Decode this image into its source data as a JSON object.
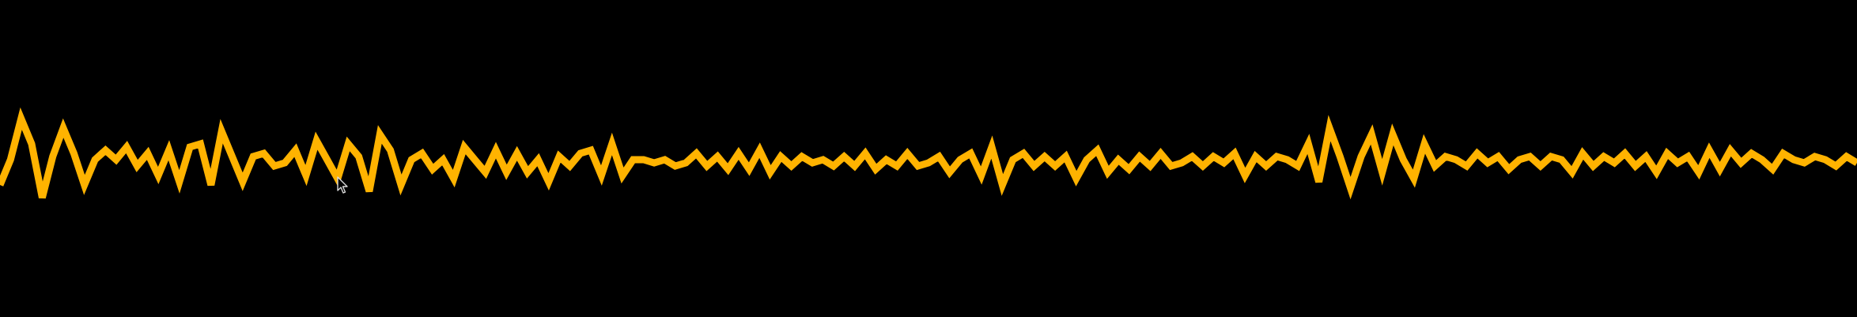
{
  "visualizer": {
    "wave_color": "#FFB300",
    "background_color": "#000000",
    "samples": [
      -0.35,
      0.05,
      0.7,
      0.3,
      -0.55,
      0.1,
      0.55,
      0.15,
      -0.35,
      0.05,
      0.2,
      0.05,
      0.25,
      -0.05,
      0.15,
      -0.2,
      0.2,
      -0.3,
      0.25,
      0.3,
      -0.35,
      0.5,
      0.1,
      -0.3,
      0.1,
      0.15,
      -0.05,
      0.0,
      0.2,
      -0.2,
      0.35,
      0.05,
      -0.25,
      0.3,
      0.1,
      -0.45,
      0.45,
      0.2,
      -0.35,
      0.05,
      0.15,
      -0.1,
      0.05,
      -0.25,
      0.25,
      0.05,
      -0.15,
      0.2,
      -0.15,
      0.15,
      -0.15,
      0.05,
      -0.3,
      0.1,
      -0.05,
      0.15,
      0.2,
      -0.2,
      0.3,
      -0.2,
      0.05,
      0.05,
      0.0,
      0.05,
      -0.05,
      0.0,
      0.15,
      -0.05,
      0.1,
      -0.1,
      0.15,
      -0.1,
      0.2,
      -0.15,
      0.1,
      -0.05,
      0.1,
      0.0,
      0.05,
      -0.05,
      0.1,
      -0.05,
      0.15,
      -0.1,
      0.05,
      -0.05,
      0.15,
      -0.05,
      0.0,
      0.1,
      -0.15,
      0.05,
      0.15,
      -0.2,
      0.25,
      -0.35,
      0.05,
      0.15,
      -0.05,
      0.1,
      -0.05,
      0.1,
      -0.25,
      0.05,
      0.2,
      -0.15,
      0.05,
      -0.1,
      0.1,
      -0.05,
      0.15,
      -0.05,
      0.0,
      0.1,
      -0.05,
      0.1,
      0.0,
      0.15,
      -0.2,
      0.1,
      -0.05,
      0.1,
      0.05,
      -0.05,
      0.3,
      -0.3,
      0.55,
      0.1,
      -0.4,
      0.1,
      0.45,
      -0.15,
      0.45,
      0.05,
      -0.25,
      0.3,
      -0.05,
      0.1,
      0.05,
      -0.05,
      0.15,
      0.0,
      0.1,
      -0.1,
      0.05,
      0.1,
      -0.05,
      0.1,
      0.05,
      -0.15,
      0.15,
      -0.05,
      0.1,
      0.0,
      0.15,
      -0.05,
      0.1,
      -0.15,
      0.15,
      0.0,
      0.1,
      -0.15,
      0.2,
      -0.1,
      0.2,
      0.0,
      0.15,
      0.05,
      -0.1,
      0.15,
      0.05,
      0.0,
      0.1,
      0.05,
      -0.05,
      0.1,
      0.0
    ]
  }
}
